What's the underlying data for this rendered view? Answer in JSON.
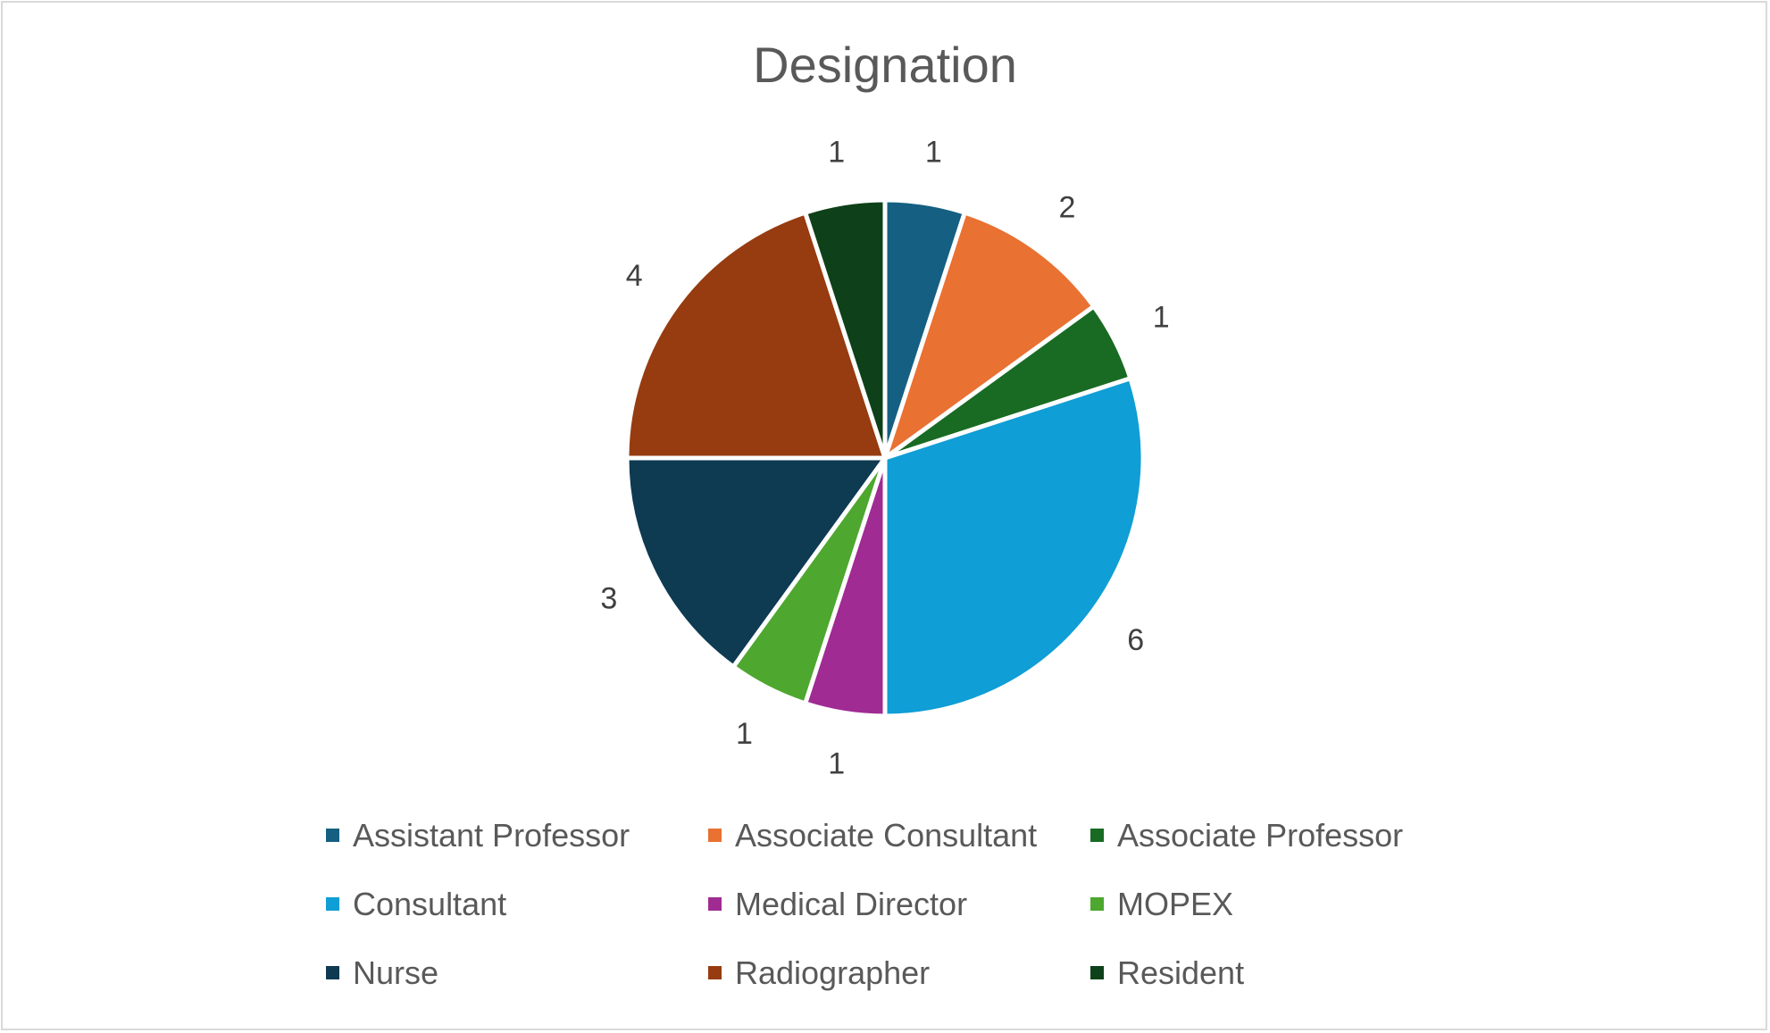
{
  "chart_data": {
    "type": "pie",
    "title": "Designation",
    "categories": [
      "Assistant Professor",
      "Associate Consultant",
      "Associate Professor",
      "Consultant",
      "Medical Director",
      "MOPEX",
      "Nurse",
      "Radiographer",
      "Resident"
    ],
    "values": [
      1,
      2,
      1,
      6,
      1,
      1,
      3,
      4,
      1
    ],
    "colors": [
      "#156082",
      "#E97132",
      "#196B24",
      "#0F9ED5",
      "#A02B93",
      "#4EA72E",
      "#0E3A52",
      "#963C10",
      "#0E4119"
    ],
    "data_labels": [
      "1",
      "2",
      "1",
      "6",
      "1",
      "1",
      "3",
      "4",
      "1"
    ],
    "legend_position": "bottom",
    "start_angle": "12 o'clock",
    "direction": "clockwise"
  }
}
